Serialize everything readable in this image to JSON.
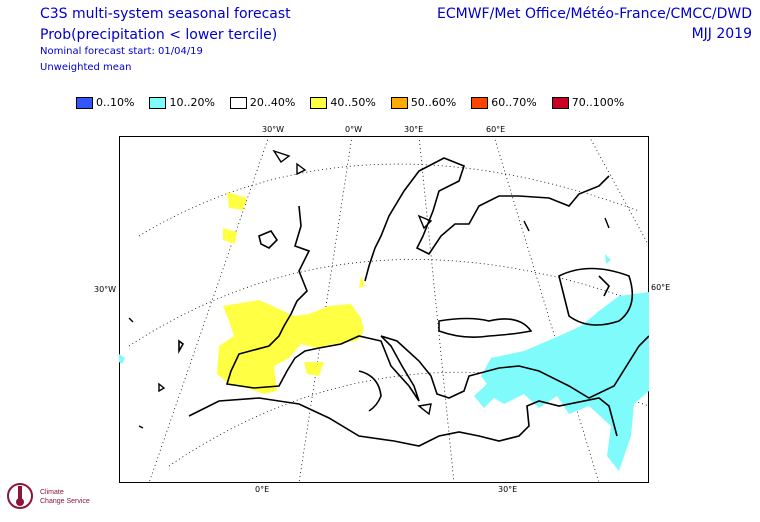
{
  "header": {
    "title": "C3S multi-system seasonal forecast",
    "subtitle": "Prob(precipitation < lower tercile)",
    "start": "Nominal forecast start: 01/04/19",
    "weighting": "Unweighted mean",
    "centres": "ECMWF/Met Office/Météo-France/CMCC/DWD",
    "period": "MJJ 2019"
  },
  "legend": [
    {
      "label": "0..10%",
      "color": "#3355ff"
    },
    {
      "label": "10..20%",
      "color": "#7ffbfb"
    },
    {
      "label": "20..40%",
      "color": "#ffffff"
    },
    {
      "label": "40..50%",
      "color": "#ffff44"
    },
    {
      "label": "50..60%",
      "color": "#ffaa00"
    },
    {
      "label": "60..70%",
      "color": "#ff4400"
    },
    {
      "label": "70..100%",
      "color": "#cc0022"
    }
  ],
  "map": {
    "top_lon_labels": [
      "30°W",
      "0°W",
      "30°E",
      "60°E"
    ],
    "bottom_lon_labels": [
      "0°E",
      "30°E"
    ],
    "left_lat_label": "30°W",
    "right_lat_label": "60°E"
  },
  "logo": {
    "line1": "Climate",
    "line2": "Change Service"
  }
}
